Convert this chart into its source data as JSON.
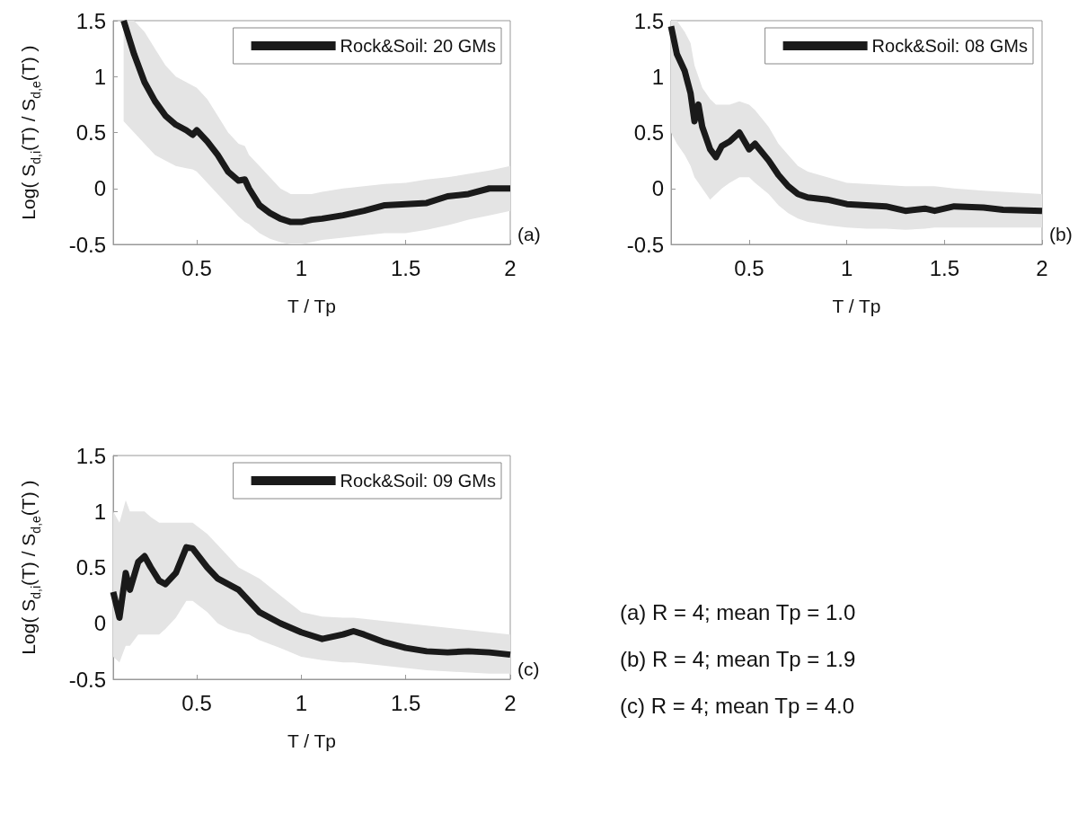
{
  "chart_data": [
    {
      "type": "line",
      "xlabel": "T / Tp",
      "ylabel": "Log( S$_{d,i}$(T) / S$_{d,e}$(T) )",
      "xlim": [
        0.1,
        2
      ],
      "ylim": [
        -0.5,
        1.5
      ],
      "xticks": [
        0.5,
        1,
        1.5,
        2
      ],
      "yticks": [
        -0.5,
        0,
        0.5,
        1,
        1.5
      ],
      "grid": false,
      "legend": "top right",
      "line_style": "solid",
      "marker": "none",
      "annotations": [
        "(a)"
      ],
      "series": [
        {
          "name": "Rock&Soil: 20 GMs",
          "color": "#1a1a1a",
          "x": [
            0.15,
            0.2,
            0.25,
            0.3,
            0.35,
            0.4,
            0.45,
            0.48,
            0.5,
            0.55,
            0.6,
            0.65,
            0.7,
            0.73,
            0.75,
            0.8,
            0.85,
            0.9,
            0.95,
            1.0,
            1.05,
            1.1,
            1.2,
            1.3,
            1.4,
            1.5,
            1.6,
            1.7,
            1.8,
            1.9,
            2.0
          ],
          "values": [
            1.5,
            1.2,
            0.95,
            0.78,
            0.65,
            0.57,
            0.52,
            0.48,
            0.52,
            0.42,
            0.3,
            0.15,
            0.07,
            0.08,
            0.0,
            -0.15,
            -0.22,
            -0.27,
            -0.3,
            -0.3,
            -0.28,
            -0.27,
            -0.24,
            -0.2,
            -0.15,
            -0.14,
            -0.13,
            -0.07,
            -0.05,
            0,
            0
          ],
          "lower": [
            0.6,
            0.5,
            0.4,
            0.3,
            0.25,
            0.2,
            0.18,
            0.17,
            0.15,
            0.05,
            -0.05,
            -0.15,
            -0.25,
            -0.3,
            -0.32,
            -0.4,
            -0.45,
            -0.48,
            -0.5,
            -0.5,
            -0.48,
            -0.46,
            -0.44,
            -0.42,
            -0.4,
            -0.4,
            -0.37,
            -0.33,
            -0.28,
            -0.24,
            -0.2
          ],
          "upper": [
            1.5,
            1.5,
            1.4,
            1.25,
            1.1,
            1.0,
            0.95,
            0.92,
            0.9,
            0.8,
            0.65,
            0.5,
            0.4,
            0.38,
            0.3,
            0.2,
            0.1,
            0.0,
            -0.05,
            -0.05,
            -0.05,
            -0.03,
            0.0,
            0.02,
            0.04,
            0.05,
            0.08,
            0.1,
            0.13,
            0.16,
            0.2
          ]
        }
      ]
    },
    {
      "type": "line",
      "xlabel": "T / Tp",
      "xlim": [
        0.1,
        2
      ],
      "ylim": [
        -0.5,
        1.5
      ],
      "xticks": [
        0.5,
        1,
        1.5,
        2
      ],
      "yticks": [
        -0.5,
        0,
        0.5,
        1,
        1.5
      ],
      "grid": false,
      "legend": "top right",
      "line_style": "solid",
      "marker": "none",
      "annotations": [
        "(b)"
      ],
      "series": [
        {
          "name": "Rock&Soil: 08 GMs",
          "color": "#1a1a1a",
          "x": [
            0.1,
            0.13,
            0.17,
            0.2,
            0.22,
            0.24,
            0.26,
            0.3,
            0.33,
            0.36,
            0.4,
            0.45,
            0.5,
            0.53,
            0.6,
            0.65,
            0.7,
            0.75,
            0.8,
            0.9,
            1.0,
            1.1,
            1.2,
            1.3,
            1.4,
            1.45,
            1.55,
            1.7,
            1.8,
            2.0
          ],
          "values": [
            1.45,
            1.2,
            1.05,
            0.85,
            0.6,
            0.75,
            0.55,
            0.35,
            0.28,
            0.38,
            0.42,
            0.5,
            0.35,
            0.4,
            0.25,
            0.12,
            0.02,
            -0.05,
            -0.08,
            -0.1,
            -0.14,
            -0.15,
            -0.16,
            -0.2,
            -0.18,
            -0.2,
            -0.16,
            -0.17,
            -0.19,
            -0.2
          ],
          "lower": [
            0.5,
            0.4,
            0.3,
            0.2,
            0.1,
            0.05,
            0.0,
            -0.1,
            -0.05,
            0.0,
            0.05,
            0.1,
            0.1,
            0.05,
            -0.05,
            -0.15,
            -0.22,
            -0.27,
            -0.3,
            -0.33,
            -0.35,
            -0.36,
            -0.36,
            -0.37,
            -0.36,
            -0.35,
            -0.35,
            -0.35,
            -0.35,
            -0.35
          ],
          "upper": [
            1.5,
            1.5,
            1.4,
            1.3,
            1.1,
            1.0,
            0.9,
            0.8,
            0.75,
            0.75,
            0.75,
            0.78,
            0.75,
            0.7,
            0.55,
            0.4,
            0.3,
            0.2,
            0.15,
            0.1,
            0.05,
            0.04,
            0.03,
            0.02,
            0.02,
            0.02,
            0.0,
            -0.02,
            -0.03,
            -0.05
          ]
        }
      ]
    },
    {
      "type": "line",
      "xlabel": "T / Tp",
      "ylabel": "Log( S$_{d,i}$(T) / S$_{d,e}$(T) )",
      "xlim": [
        0.1,
        2
      ],
      "ylim": [
        -0.5,
        1.5
      ],
      "xticks": [
        0.5,
        1,
        1.5,
        2
      ],
      "yticks": [
        -0.5,
        0,
        0.5,
        1,
        1.5
      ],
      "grid": false,
      "legend": "top right",
      "line_style": "solid",
      "marker": "none",
      "annotations": [
        "(c)"
      ],
      "series": [
        {
          "name": "Rock&Soil: 09 GMs",
          "color": "#1a1a1a",
          "x": [
            0.1,
            0.13,
            0.16,
            0.18,
            0.22,
            0.25,
            0.28,
            0.32,
            0.35,
            0.4,
            0.45,
            0.48,
            0.55,
            0.6,
            0.65,
            0.7,
            0.75,
            0.8,
            0.9,
            1.0,
            1.1,
            1.2,
            1.25,
            1.3,
            1.4,
            1.5,
            1.6,
            1.7,
            1.8,
            1.9,
            2.0
          ],
          "values": [
            0.28,
            0.05,
            0.45,
            0.3,
            0.55,
            0.6,
            0.5,
            0.38,
            0.35,
            0.45,
            0.68,
            0.67,
            0.5,
            0.4,
            0.35,
            0.3,
            0.2,
            0.1,
            0,
            -0.08,
            -0.14,
            -0.1,
            -0.07,
            -0.1,
            -0.17,
            -0.22,
            -0.25,
            -0.26,
            -0.25,
            -0.26,
            -0.28
          ],
          "lower": [
            -0.3,
            -0.35,
            -0.2,
            -0.2,
            -0.1,
            -0.1,
            -0.1,
            -0.1,
            -0.05,
            0.05,
            0.2,
            0.2,
            0.1,
            0.0,
            -0.05,
            -0.08,
            -0.1,
            -0.15,
            -0.22,
            -0.3,
            -0.33,
            -0.35,
            -0.35,
            -0.36,
            -0.38,
            -0.4,
            -0.42,
            -0.43,
            -0.44,
            -0.45,
            -0.45
          ],
          "upper": [
            1.0,
            0.9,
            1.1,
            1.0,
            1.0,
            1.0,
            0.95,
            0.9,
            0.9,
            0.9,
            0.9,
            0.9,
            0.8,
            0.7,
            0.6,
            0.5,
            0.45,
            0.4,
            0.25,
            0.1,
            0.06,
            0.05,
            0.05,
            0.04,
            0.02,
            0.0,
            -0.02,
            -0.04,
            -0.06,
            -0.08,
            -0.1
          ]
        }
      ]
    },
    {
      "type": "other",
      "annotations": [
        "(a) R = 4; mean Tp = 1.0",
        "(b) R = 4; mean Tp = 1.9",
        "(c) R = 4; mean Tp = 4.0"
      ]
    }
  ]
}
